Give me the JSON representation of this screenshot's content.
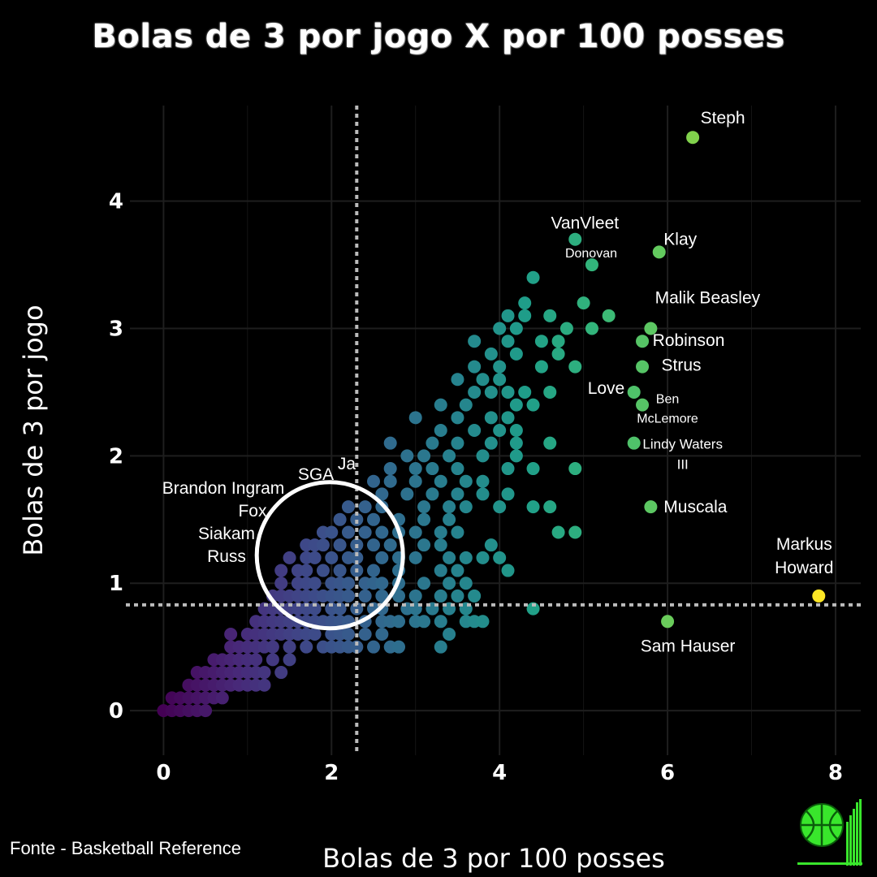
{
  "title": "Bolas de 3 por jogo X por 100 posses",
  "source": "Fonte - Basketball Reference",
  "colors": {
    "background": "#000000",
    "low": "#440154",
    "mid": "#21918c",
    "high": "#fde725",
    "highlight_circle": "#ffffff"
  },
  "chart_data": {
    "type": "scatter",
    "title": "Bolas de 3 por jogo X por 100 posses",
    "xlabel": "Bolas de 3 por 100 posses",
    "ylabel": "Bolas de 3 por jogo",
    "xlim": [
      -0.4,
      8.3
    ],
    "ylim": [
      -0.35,
      4.75
    ],
    "xticks": [
      0,
      2,
      4,
      6,
      8
    ],
    "yticks": [
      0,
      1,
      2,
      3,
      4
    ],
    "grid": true,
    "color_scale": "viridis",
    "reference_lines": {
      "x": 2.3,
      "y": 0.83
    },
    "highlight_circle": {
      "x": 1.98,
      "y": 1.22
    },
    "labeled_points": [
      {
        "name": "Steph",
        "x": 6.3,
        "y": 4.5
      },
      {
        "name": "VanVleet",
        "x": 4.9,
        "y": 3.7
      },
      {
        "name": "Klay",
        "x": 5.9,
        "y": 3.6
      },
      {
        "name": "Donovan",
        "x": 5.1,
        "y": 3.5
      },
      {
        "name": "Malik Beasley",
        "x": 5.8,
        "y": 3.0
      },
      {
        "name": "Robinson",
        "x": 5.7,
        "y": 2.9
      },
      {
        "name": "Strus",
        "x": 5.7,
        "y": 2.7
      },
      {
        "name": "Love",
        "x": 5.6,
        "y": 2.5
      },
      {
        "name": "Ben McLemore",
        "x": 5.7,
        "y": 2.4
      },
      {
        "name": "Lindy Waters III",
        "x": 5.6,
        "y": 2.1
      },
      {
        "name": "Muscala",
        "x": 5.8,
        "y": 1.6
      },
      {
        "name": "Markus Howard",
        "x": 7.8,
        "y": 0.9
      },
      {
        "name": "Sam Hauser",
        "x": 6.0,
        "y": 0.7
      }
    ],
    "circle_labels": [
      "Ja",
      "SGA",
      "Brandon Ingram",
      "Fox",
      "Siakam",
      "Russ"
    ],
    "points": [
      [
        0.0,
        0.0
      ],
      [
        0.1,
        0.0
      ],
      [
        0.2,
        0.0
      ],
      [
        0.3,
        0.0
      ],
      [
        0.4,
        0.0
      ],
      [
        0.5,
        0.0
      ],
      [
        0.1,
        0.1
      ],
      [
        0.2,
        0.1
      ],
      [
        0.3,
        0.1
      ],
      [
        0.4,
        0.1
      ],
      [
        0.5,
        0.1
      ],
      [
        0.6,
        0.1
      ],
      [
        0.7,
        0.1
      ],
      [
        0.3,
        0.2
      ],
      [
        0.4,
        0.2
      ],
      [
        0.5,
        0.2
      ],
      [
        0.6,
        0.2
      ],
      [
        0.7,
        0.2
      ],
      [
        0.8,
        0.2
      ],
      [
        0.9,
        0.2
      ],
      [
        1.0,
        0.2
      ],
      [
        1.1,
        0.2
      ],
      [
        1.2,
        0.2
      ],
      [
        0.4,
        0.3
      ],
      [
        0.5,
        0.3
      ],
      [
        0.6,
        0.3
      ],
      [
        0.7,
        0.3
      ],
      [
        0.8,
        0.3
      ],
      [
        0.9,
        0.3
      ],
      [
        1.0,
        0.3
      ],
      [
        1.1,
        0.3
      ],
      [
        1.2,
        0.3
      ],
      [
        1.4,
        0.3
      ],
      [
        0.6,
        0.4
      ],
      [
        0.7,
        0.4
      ],
      [
        0.8,
        0.4
      ],
      [
        0.9,
        0.4
      ],
      [
        1.0,
        0.4
      ],
      [
        1.1,
        0.4
      ],
      [
        1.3,
        0.4
      ],
      [
        1.5,
        0.4
      ],
      [
        0.8,
        0.5
      ],
      [
        0.9,
        0.5
      ],
      [
        1.0,
        0.5
      ],
      [
        1.1,
        0.5
      ],
      [
        1.2,
        0.5
      ],
      [
        1.3,
        0.5
      ],
      [
        1.5,
        0.5
      ],
      [
        1.7,
        0.5
      ],
      [
        1.9,
        0.5
      ],
      [
        2.0,
        0.5
      ],
      [
        2.1,
        0.5
      ],
      [
        2.2,
        0.5
      ],
      [
        2.3,
        0.5
      ],
      [
        2.5,
        0.5
      ],
      [
        2.7,
        0.5
      ],
      [
        2.8,
        0.5
      ],
      [
        3.3,
        0.5
      ],
      [
        0.8,
        0.6
      ],
      [
        1.0,
        0.6
      ],
      [
        1.1,
        0.6
      ],
      [
        1.2,
        0.6
      ],
      [
        1.3,
        0.6
      ],
      [
        1.4,
        0.6
      ],
      [
        1.5,
        0.6
      ],
      [
        1.6,
        0.6
      ],
      [
        1.7,
        0.6
      ],
      [
        1.8,
        0.6
      ],
      [
        2.0,
        0.6
      ],
      [
        2.1,
        0.6
      ],
      [
        2.2,
        0.6
      ],
      [
        2.4,
        0.6
      ],
      [
        2.6,
        0.6
      ],
      [
        3.4,
        0.6
      ],
      [
        1.1,
        0.7
      ],
      [
        1.2,
        0.7
      ],
      [
        1.3,
        0.7
      ],
      [
        1.4,
        0.7
      ],
      [
        1.5,
        0.7
      ],
      [
        1.6,
        0.7
      ],
      [
        1.7,
        0.7
      ],
      [
        1.8,
        0.7
      ],
      [
        1.9,
        0.7
      ],
      [
        2.0,
        0.7
      ],
      [
        2.1,
        0.7
      ],
      [
        2.2,
        0.7
      ],
      [
        2.4,
        0.7
      ],
      [
        2.6,
        0.7
      ],
      [
        2.7,
        0.7
      ],
      [
        2.8,
        0.7
      ],
      [
        3.0,
        0.7
      ],
      [
        3.1,
        0.7
      ],
      [
        3.3,
        0.7
      ],
      [
        3.6,
        0.7
      ],
      [
        3.7,
        0.7
      ],
      [
        3.8,
        0.7
      ],
      [
        1.2,
        0.8
      ],
      [
        1.3,
        0.8
      ],
      [
        1.4,
        0.8
      ],
      [
        1.5,
        0.8
      ],
      [
        1.6,
        0.8
      ],
      [
        1.7,
        0.8
      ],
      [
        1.8,
        0.8
      ],
      [
        2.0,
        0.8
      ],
      [
        2.1,
        0.8
      ],
      [
        2.3,
        0.8
      ],
      [
        2.5,
        0.8
      ],
      [
        2.6,
        0.8
      ],
      [
        2.9,
        0.8
      ],
      [
        3.0,
        0.8
      ],
      [
        3.2,
        0.8
      ],
      [
        3.4,
        0.8
      ],
      [
        3.6,
        0.8
      ],
      [
        4.4,
        0.8
      ],
      [
        1.3,
        0.9
      ],
      [
        1.4,
        0.9
      ],
      [
        1.5,
        0.9
      ],
      [
        1.6,
        0.9
      ],
      [
        1.7,
        0.9
      ],
      [
        1.8,
        0.9
      ],
      [
        1.9,
        0.9
      ],
      [
        2.0,
        0.9
      ],
      [
        2.1,
        0.9
      ],
      [
        2.2,
        0.9
      ],
      [
        2.4,
        0.9
      ],
      [
        2.6,
        0.9
      ],
      [
        2.8,
        0.9
      ],
      [
        3.0,
        0.9
      ],
      [
        3.3,
        0.9
      ],
      [
        3.5,
        0.9
      ],
      [
        3.7,
        0.9
      ],
      [
        1.4,
        1.0
      ],
      [
        1.6,
        1.0
      ],
      [
        1.7,
        1.0
      ],
      [
        1.8,
        1.0
      ],
      [
        2.0,
        1.0
      ],
      [
        2.1,
        1.0
      ],
      [
        2.2,
        1.0
      ],
      [
        2.4,
        1.0
      ],
      [
        2.5,
        1.0
      ],
      [
        2.6,
        1.0
      ],
      [
        2.8,
        1.0
      ],
      [
        3.1,
        1.0
      ],
      [
        3.4,
        1.0
      ],
      [
        3.6,
        1.0
      ],
      [
        1.4,
        1.1
      ],
      [
        1.6,
        1.1
      ],
      [
        1.7,
        1.1
      ],
      [
        1.9,
        1.1
      ],
      [
        2.1,
        1.1
      ],
      [
        2.3,
        1.1
      ],
      [
        2.5,
        1.1
      ],
      [
        2.8,
        1.1
      ],
      [
        3.3,
        1.1
      ],
      [
        3.5,
        1.1
      ],
      [
        4.1,
        1.1
      ],
      [
        1.5,
        1.2
      ],
      [
        1.7,
        1.2
      ],
      [
        1.8,
        1.2
      ],
      [
        2.0,
        1.2
      ],
      [
        2.2,
        1.2
      ],
      [
        2.3,
        1.2
      ],
      [
        2.6,
        1.2
      ],
      [
        2.8,
        1.2
      ],
      [
        3.0,
        1.2
      ],
      [
        3.4,
        1.2
      ],
      [
        3.6,
        1.2
      ],
      [
        3.8,
        1.2
      ],
      [
        4.0,
        1.2
      ],
      [
        1.7,
        1.3
      ],
      [
        1.8,
        1.3
      ],
      [
        1.9,
        1.3
      ],
      [
        2.1,
        1.3
      ],
      [
        2.3,
        1.3
      ],
      [
        2.5,
        1.3
      ],
      [
        2.7,
        1.3
      ],
      [
        3.1,
        1.3
      ],
      [
        3.3,
        1.3
      ],
      [
        3.9,
        1.3
      ],
      [
        1.9,
        1.4
      ],
      [
        2.0,
        1.4
      ],
      [
        2.2,
        1.4
      ],
      [
        2.4,
        1.4
      ],
      [
        2.6,
        1.4
      ],
      [
        2.8,
        1.4
      ],
      [
        3.0,
        1.4
      ],
      [
        3.3,
        1.4
      ],
      [
        3.5,
        1.4
      ],
      [
        4.7,
        1.4
      ],
      [
        4.9,
        1.4
      ],
      [
        2.1,
        1.5
      ],
      [
        2.3,
        1.5
      ],
      [
        2.5,
        1.5
      ],
      [
        2.8,
        1.5
      ],
      [
        3.1,
        1.5
      ],
      [
        3.4,
        1.5
      ],
      [
        2.2,
        1.6
      ],
      [
        2.4,
        1.6
      ],
      [
        2.6,
        1.6
      ],
      [
        3.1,
        1.6
      ],
      [
        3.4,
        1.6
      ],
      [
        3.6,
        1.6
      ],
      [
        4.0,
        1.6
      ],
      [
        4.4,
        1.6
      ],
      [
        4.6,
        1.6
      ],
      [
        2.6,
        1.7
      ],
      [
        2.9,
        1.7
      ],
      [
        3.2,
        1.7
      ],
      [
        3.5,
        1.7
      ],
      [
        3.8,
        1.7
      ],
      [
        4.1,
        1.7
      ],
      [
        2.5,
        1.8
      ],
      [
        2.7,
        1.8
      ],
      [
        3.0,
        1.8
      ],
      [
        3.3,
        1.8
      ],
      [
        3.6,
        1.8
      ],
      [
        3.8,
        1.8
      ],
      [
        2.7,
        1.9
      ],
      [
        3.0,
        1.9
      ],
      [
        3.2,
        1.9
      ],
      [
        3.5,
        1.9
      ],
      [
        4.1,
        1.9
      ],
      [
        4.4,
        1.9
      ],
      [
        4.9,
        1.9
      ],
      [
        2.9,
        2.0
      ],
      [
        3.1,
        2.0
      ],
      [
        3.4,
        2.0
      ],
      [
        3.8,
        2.0
      ],
      [
        4.2,
        2.0
      ],
      [
        2.7,
        2.1
      ],
      [
        3.2,
        2.1
      ],
      [
        3.5,
        2.1
      ],
      [
        3.9,
        2.1
      ],
      [
        4.2,
        2.1
      ],
      [
        4.6,
        2.1
      ],
      [
        3.3,
        2.2
      ],
      [
        3.7,
        2.2
      ],
      [
        4.0,
        2.2
      ],
      [
        4.2,
        2.2
      ],
      [
        3.0,
        2.3
      ],
      [
        3.5,
        2.3
      ],
      [
        3.9,
        2.3
      ],
      [
        4.1,
        2.3
      ],
      [
        3.3,
        2.4
      ],
      [
        3.6,
        2.4
      ],
      [
        4.2,
        2.4
      ],
      [
        4.4,
        2.4
      ],
      [
        3.7,
        2.5
      ],
      [
        3.9,
        2.5
      ],
      [
        4.1,
        2.5
      ],
      [
        4.3,
        2.5
      ],
      [
        4.6,
        2.5
      ],
      [
        3.5,
        2.6
      ],
      [
        3.8,
        2.6
      ],
      [
        4.0,
        2.6
      ],
      [
        3.7,
        2.7
      ],
      [
        4.0,
        2.7
      ],
      [
        4.5,
        2.7
      ],
      [
        4.9,
        2.7
      ],
      [
        3.9,
        2.8
      ],
      [
        4.2,
        2.8
      ],
      [
        4.7,
        2.8
      ],
      [
        3.7,
        2.9
      ],
      [
        4.1,
        2.9
      ],
      [
        4.5,
        2.9
      ],
      [
        4.7,
        2.9
      ],
      [
        4.0,
        3.0
      ],
      [
        4.2,
        3.0
      ],
      [
        4.8,
        3.0
      ],
      [
        5.1,
        3.0
      ],
      [
        4.1,
        3.1
      ],
      [
        4.3,
        3.1
      ],
      [
        4.6,
        3.1
      ],
      [
        5.3,
        3.1
      ],
      [
        4.3,
        3.2
      ],
      [
        5.0,
        3.2
      ],
      [
        4.4,
        3.4
      ]
    ]
  }
}
